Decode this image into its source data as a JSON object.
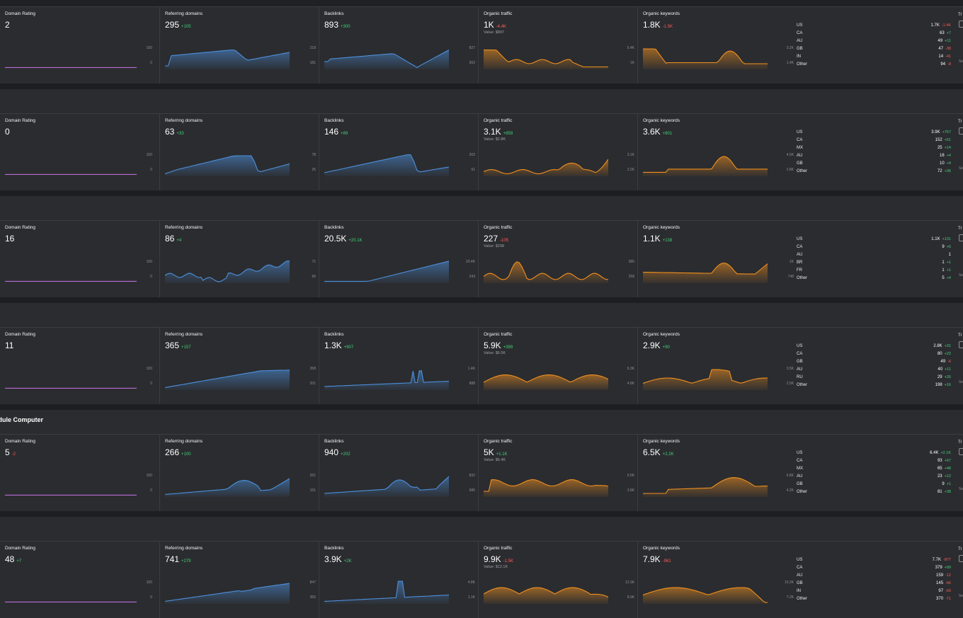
{
  "colors": {
    "blue": "#4c90dd",
    "orange": "#f0901f",
    "purple": "#b86cd6",
    "positive": "#3fd37a",
    "negative": "#ff5b5b"
  },
  "labels": {
    "dr": "Domain Rating",
    "rd": "Referring domains",
    "bl": "Backlinks",
    "ot": "Organic traffic",
    "ok": "Organic keywords",
    "edge_label": "Tr",
    "edge_small": "Se",
    "section_title": "odule Computer",
    "dr_axis_top": "100",
    "dr_axis_bottom": "0"
  },
  "rows": [
    {
      "dr": {
        "value": "2",
        "delta": ""
      },
      "rd": {
        "value": "295",
        "delta": "+105",
        "axis": [
          "218",
          "181"
        ]
      },
      "bl": {
        "value": "893",
        "delta": "+300",
        "axis": [
          "827",
          "563"
        ]
      },
      "ot": {
        "value": "1K",
        "delta": "-4.4K",
        "sub": "Value: $897",
        "axis": [
          "5.4K",
          "1K"
        ]
      },
      "ok": {
        "value": "1.8K",
        "delta": "-1.5K",
        "axis": [
          "3.2K",
          "1.4K"
        ]
      },
      "countries": [
        {
          "code": "US",
          "value": "1.7K",
          "delta": "-1.4K"
        },
        {
          "code": "CA",
          "value": "63",
          "delta": "+7"
        },
        {
          "code": "AU",
          "value": "49",
          "delta": "+11"
        },
        {
          "code": "GB",
          "value": "47",
          "delta": "-38"
        },
        {
          "code": "IN",
          "value": "14",
          "delta": "-41"
        },
        {
          "code": "Other",
          "value": "94",
          "delta": "-8"
        }
      ]
    },
    {
      "dr": {
        "value": "0",
        "delta": ""
      },
      "rd": {
        "value": "63",
        "delta": "+33",
        "axis": [
          "78",
          "25"
        ]
      },
      "bl": {
        "value": "146",
        "delta": "+89",
        "axis": [
          "203",
          "51"
        ]
      },
      "ot": {
        "value": "3.1K",
        "delta": "+859",
        "sub": "Value: $2.8K",
        "axis": [
          "3.1K",
          "2.2K"
        ]
      },
      "ok": {
        "value": "3.6K",
        "delta": "+801",
        "axis": [
          "4.5K",
          "2.8K"
        ]
      },
      "countries": [
        {
          "code": "US",
          "value": "3.9K",
          "delta": "+757"
        },
        {
          "code": "CA",
          "value": "152",
          "delta": "+61"
        },
        {
          "code": "MX",
          "value": "25",
          "delta": "+14"
        },
        {
          "code": "AU",
          "value": "16",
          "delta": "+4"
        },
        {
          "code": "GB",
          "value": "10",
          "delta": "+4"
        },
        {
          "code": "Other",
          "value": "72",
          "delta": "+36"
        }
      ]
    },
    {
      "dr": {
        "value": "16",
        "delta": ""
      },
      "rd": {
        "value": "86",
        "delta": "+4",
        "axis": [
          "71",
          "66"
        ]
      },
      "bl": {
        "value": "20.5K",
        "delta": "+20.1K",
        "axis": [
          "20.4K",
          "243"
        ]
      },
      "ot": {
        "value": "227",
        "delta": "-105",
        "sub": "Value: $298",
        "axis": [
          "385",
          "258"
        ]
      },
      "ok": {
        "value": "1.1K",
        "delta": "+138",
        "axis": [
          "1K",
          "748"
        ]
      },
      "countries": [
        {
          "code": "US",
          "value": "1.1K",
          "delta": "+131"
        },
        {
          "code": "CA",
          "value": "9",
          "delta": "+6"
        },
        {
          "code": "AU",
          "value": "1",
          "delta": ""
        },
        {
          "code": "BR",
          "value": "1",
          "delta": "+1"
        },
        {
          "code": "FR",
          "value": "1",
          "delta": "+1"
        },
        {
          "code": "Other",
          "value": "5",
          "delta": "+4"
        }
      ]
    },
    {
      "dr": {
        "value": "11",
        "delta": ""
      },
      "rd": {
        "value": "365",
        "delta": "+157",
        "axis": [
          "358",
          "201"
        ]
      },
      "bl": {
        "value": "1.3K",
        "delta": "+907",
        "axis": [
          "1.4K",
          "888"
        ]
      },
      "ot": {
        "value": "5.9K",
        "delta": "+399",
        "sub": "Value: $6.5K",
        "axis": [
          "6.3K",
          "4.8K"
        ]
      },
      "ok": {
        "value": "2.9K",
        "delta": "+90",
        "axis": [
          "3.5K",
          "2.5K"
        ]
      },
      "countries": [
        {
          "code": "US",
          "value": "2.8K",
          "delta": "+31"
        },
        {
          "code": "CA",
          "value": "80",
          "delta": "+22"
        },
        {
          "code": "GB",
          "value": "49",
          "delta": "-6"
        },
        {
          "code": "AU",
          "value": "40",
          "delta": "+11"
        },
        {
          "code": "RU",
          "value": "29",
          "delta": "+26"
        },
        {
          "code": "Other",
          "value": "198",
          "delta": "+16"
        }
      ]
    },
    {
      "dr": {
        "value": "5",
        "delta": "-2"
      },
      "rd": {
        "value": "266",
        "delta": "+100",
        "axis": [
          "251",
          "151"
        ]
      },
      "bl": {
        "value": "940",
        "delta": "+202",
        "axis": [
          "832",
          "685"
        ]
      },
      "ot": {
        "value": "5K",
        "delta": "+1.1K",
        "sub": "Value: $6.4K",
        "axis": [
          "6.5K",
          "3.8K"
        ]
      },
      "ok": {
        "value": "6.5K",
        "delta": "+2.2K",
        "axis": [
          "6.8K",
          "4.2K"
        ]
      },
      "countries": [
        {
          "code": "US",
          "value": "6.4K",
          "delta": "+2.1K"
        },
        {
          "code": "CA",
          "value": "93",
          "delta": "+67"
        },
        {
          "code": "MX",
          "value": "65",
          "delta": "+48"
        },
        {
          "code": "AU",
          "value": "23",
          "delta": "+12"
        },
        {
          "code": "GB",
          "value": "9",
          "delta": "+1"
        },
        {
          "code": "Other",
          "value": "81",
          "delta": "+38"
        }
      ]
    },
    {
      "dr": {
        "value": "48",
        "delta": "+7"
      },
      "rd": {
        "value": "741",
        "delta": "+279",
        "axis": [
          "847",
          "365"
        ]
      },
      "bl": {
        "value": "3.9K",
        "delta": "+2K",
        "axis": [
          "4.8K",
          "1.1K"
        ]
      },
      "ot": {
        "value": "9.9K",
        "delta": "-1.5K",
        "sub": "Value: $12.1K",
        "axis": [
          "12.3K",
          "8.9K"
        ]
      },
      "ok": {
        "value": "7.9K",
        "delta": "-961",
        "axis": [
          "10.2K",
          "7.2K"
        ]
      },
      "countries": [
        {
          "code": "US",
          "value": "7.7K",
          "delta": "-877"
        },
        {
          "code": "CA",
          "value": "379",
          "delta": "+99"
        },
        {
          "code": "AU",
          "value": "159",
          "delta": "-12"
        },
        {
          "code": "GB",
          "value": "145",
          "delta": "-66"
        },
        {
          "code": "IN",
          "value": "97",
          "delta": "-60"
        },
        {
          "code": "Other",
          "value": "370",
          "delta": "-71"
        }
      ]
    }
  ]
}
